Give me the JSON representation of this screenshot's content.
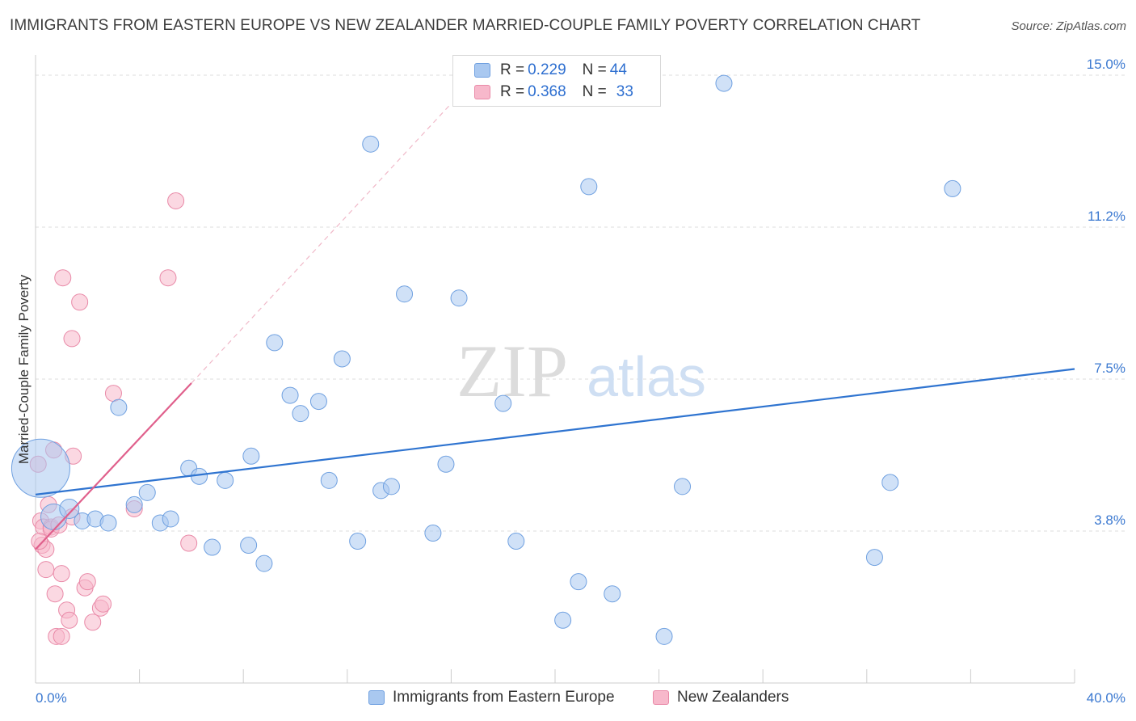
{
  "title": "IMMIGRANTS FROM EASTERN EUROPE VS NEW ZEALANDER MARRIED-COUPLE FAMILY POVERTY CORRELATION CHART",
  "source": "Source: ZipAtlas.com",
  "watermark": {
    "zip": "ZIP",
    "atlas": "atlas"
  },
  "legend": {
    "rows": [
      {
        "r_label": "R = ",
        "r_value": "0.229",
        "n_label": "N = ",
        "n_value": "44"
      },
      {
        "r_label": "R = ",
        "r_value": "0.368",
        "n_label": "N = ",
        "n_value": "33"
      }
    ]
  },
  "colors": {
    "blue_fill": "#a9c8f0",
    "blue_stroke": "#6fa0e0",
    "blue_line": "#2f74d0",
    "pink_fill": "#f7b8cb",
    "pink_stroke": "#e98aa8",
    "pink_line": "#e0608c",
    "tick_label": "#3a78d0",
    "grid": "#dddddd"
  },
  "chart_data": {
    "type": "scatter",
    "title": "IMMIGRANTS FROM EASTERN EUROPE VS NEW ZEALANDER MARRIED-COUPLE FAMILY POVERTY CORRELATION CHART",
    "xlabel": "",
    "ylabel": "Married-Couple Family Poverty",
    "xlim": [
      0,
      40
    ],
    "ylim": [
      0,
      15.3
    ],
    "x_tick_labels": [
      {
        "value": 0,
        "label": "0.0%"
      },
      {
        "value": 40,
        "label": "40.0%"
      }
    ],
    "y_ticks": [
      {
        "value": 3.75,
        "label": "3.8%"
      },
      {
        "value": 7.5,
        "label": "7.5%"
      },
      {
        "value": 11.25,
        "label": "11.2%"
      },
      {
        "value": 15.0,
        "label": "15.0%"
      }
    ],
    "series": [
      {
        "name": "Immigrants from Eastern Europe",
        "color": "blue",
        "trend": {
          "x": [
            0,
            40
          ],
          "y": [
            4.65,
            7.75
          ]
        },
        "points": [
          [
            0.2,
            5.3,
            36
          ],
          [
            0.7,
            4.1,
            16
          ],
          [
            1.3,
            4.3,
            12
          ],
          [
            1.8,
            4.0,
            10
          ],
          [
            2.3,
            4.05,
            10
          ],
          [
            2.8,
            3.95,
            10
          ],
          [
            3.2,
            6.8,
            10
          ],
          [
            3.8,
            4.4,
            10
          ],
          [
            4.3,
            4.7,
            10
          ],
          [
            4.8,
            3.95,
            10
          ],
          [
            5.2,
            4.05,
            10
          ],
          [
            5.9,
            5.3,
            10
          ],
          [
            6.3,
            5.1,
            10
          ],
          [
            6.8,
            3.35,
            10
          ],
          [
            7.3,
            5.0,
            10
          ],
          [
            8.2,
            3.4,
            10
          ],
          [
            8.3,
            5.6,
            10
          ],
          [
            8.8,
            2.95,
            10
          ],
          [
            9.2,
            8.4,
            10
          ],
          [
            9.8,
            7.1,
            10
          ],
          [
            10.2,
            6.65,
            10
          ],
          [
            10.9,
            6.95,
            10
          ],
          [
            11.3,
            5.0,
            10
          ],
          [
            11.8,
            8.0,
            10
          ],
          [
            12.4,
            3.5,
            10
          ],
          [
            12.9,
            13.3,
            10
          ],
          [
            13.3,
            4.75,
            10
          ],
          [
            13.7,
            4.85,
            10
          ],
          [
            14.2,
            9.6,
            10
          ],
          [
            15.3,
            3.7,
            10
          ],
          [
            15.8,
            5.4,
            10
          ],
          [
            16.3,
            9.5,
            10
          ],
          [
            18.0,
            6.9,
            10
          ],
          [
            18.5,
            3.5,
            10
          ],
          [
            20.3,
            1.55,
            10
          ],
          [
            20.9,
            2.5,
            10
          ],
          [
            21.3,
            12.25,
            10
          ],
          [
            22.2,
            2.2,
            10
          ],
          [
            24.2,
            1.15,
            10
          ],
          [
            24.9,
            4.85,
            10
          ],
          [
            26.5,
            14.8,
            10
          ],
          [
            32.3,
            3.1,
            10
          ],
          [
            32.9,
            4.95,
            10
          ],
          [
            35.3,
            12.2,
            10
          ]
        ]
      },
      {
        "name": "New Zealanders",
        "color": "pink",
        "trend": {
          "x": [
            0,
            6.0
          ],
          "y": [
            3.3,
            7.4
          ]
        },
        "trend_dashed_to": {
          "x": 16.0,
          "y": 14.3
        },
        "points": [
          [
            0.1,
            5.4,
            10
          ],
          [
            0.2,
            4.0,
            10
          ],
          [
            0.25,
            3.4,
            10
          ],
          [
            0.3,
            3.85,
            10
          ],
          [
            0.4,
            3.3,
            10
          ],
          [
            0.4,
            2.8,
            10
          ],
          [
            0.5,
            4.4,
            10
          ],
          [
            0.6,
            3.85,
            10
          ],
          [
            0.6,
            3.8,
            10
          ],
          [
            0.7,
            5.75,
            10
          ],
          [
            0.75,
            2.2,
            10
          ],
          [
            0.8,
            1.15,
            10
          ],
          [
            0.9,
            3.9,
            10
          ],
          [
            1.0,
            2.7,
            10
          ],
          [
            1.0,
            1.15,
            10
          ],
          [
            1.05,
            10.0,
            10
          ],
          [
            1.2,
            1.8,
            10
          ],
          [
            1.3,
            1.55,
            10
          ],
          [
            1.4,
            8.5,
            10
          ],
          [
            1.4,
            4.1,
            10
          ],
          [
            1.45,
            5.6,
            10
          ],
          [
            1.7,
            9.4,
            10
          ],
          [
            1.9,
            2.35,
            10
          ],
          [
            2.0,
            2.5,
            10
          ],
          [
            2.2,
            1.5,
            10
          ],
          [
            2.5,
            1.85,
            10
          ],
          [
            2.6,
            1.95,
            10
          ],
          [
            3.0,
            7.15,
            10
          ],
          [
            3.8,
            4.3,
            10
          ],
          [
            5.1,
            10.0,
            10
          ],
          [
            5.4,
            11.9,
            10
          ],
          [
            5.9,
            3.45,
            10
          ],
          [
            0.15,
            3.5,
            10
          ]
        ]
      }
    ],
    "legend_entries": [
      "Immigrants from Eastern Europe",
      "New Zealanders"
    ]
  }
}
